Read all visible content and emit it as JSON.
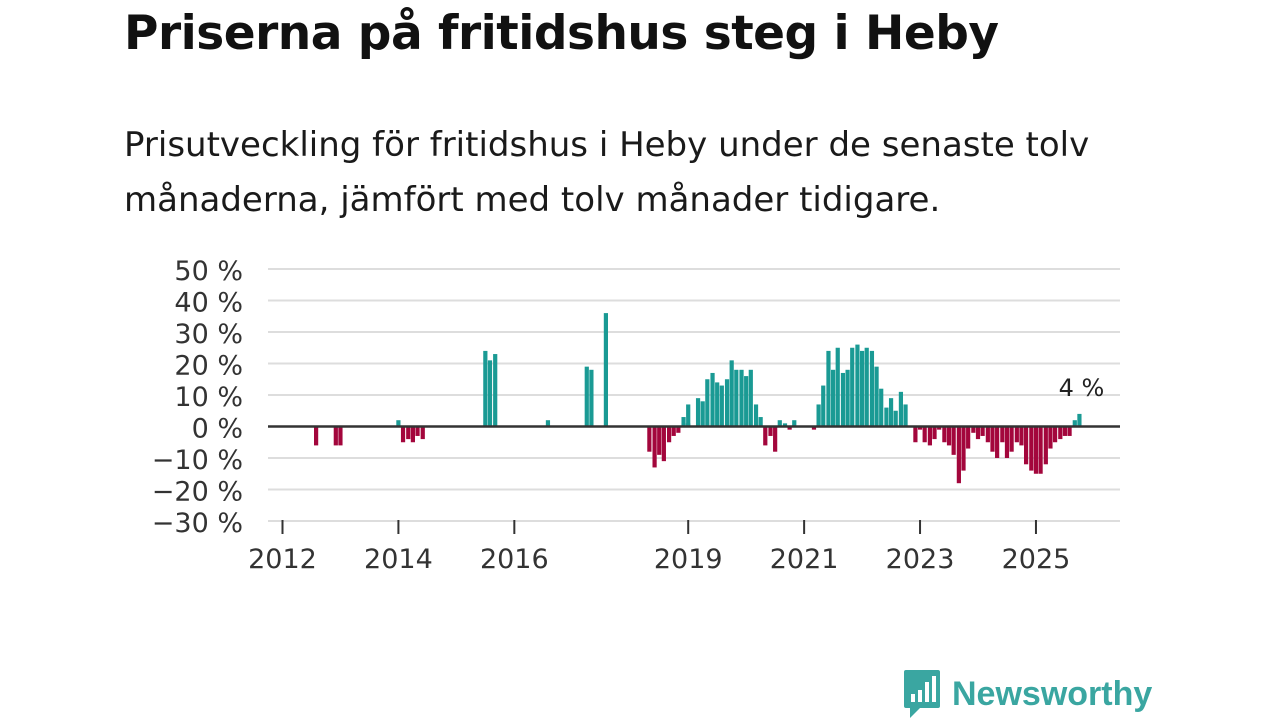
{
  "title": "Priserna på fritidshus steg i Heby",
  "subtitle": "Prisutveckling för fritidshus i Heby under de senaste tolv månaderna, jämfört med tolv månader tidigare.",
  "brand": "Newsworthy",
  "colors": {
    "positive": "#1a9a94",
    "negative": "#a3063c",
    "grid": "#dddddd",
    "zero": "#333333",
    "brand": "#3aa6a1"
  },
  "chart_data": {
    "type": "bar",
    "title": "Priserna på fritidshus steg i Heby",
    "ylabel": "",
    "xlabel": "",
    "ylim": [
      -30,
      50
    ],
    "yticks": [
      50,
      40,
      30,
      20,
      10,
      0,
      -10,
      -20,
      -30
    ],
    "ytick_labels": [
      "50 %",
      "40 %",
      "30 %",
      "20 %",
      "10 %",
      "0 %",
      "−10 %",
      "−20 %",
      "−30 %"
    ],
    "xticks": [
      2012,
      2014,
      2016,
      2019,
      2021,
      2023,
      2025
    ],
    "xtick_labels": [
      "2012",
      "2014",
      "2016",
      "2019",
      "2021",
      "2023",
      "2025"
    ],
    "xlim": [
      2011.75,
      2026.45
    ],
    "annotation": {
      "text": "4 %",
      "x": 2025.75,
      "value": 4
    },
    "series": [
      {
        "name": "Prisutveckling",
        "points": [
          [
            2012.58,
            -6
          ],
          [
            2012.92,
            -6
          ],
          [
            2013.0,
            -6
          ],
          [
            2014.0,
            2
          ],
          [
            2014.08,
            -5
          ],
          [
            2014.17,
            -4
          ],
          [
            2014.25,
            -5
          ],
          [
            2014.33,
            -3
          ],
          [
            2014.42,
            -4
          ],
          [
            2015.5,
            24
          ],
          [
            2015.58,
            21
          ],
          [
            2015.67,
            23
          ],
          [
            2016.58,
            2
          ],
          [
            2017.25,
            19
          ],
          [
            2017.33,
            18
          ],
          [
            2017.58,
            36
          ],
          [
            2018.92,
            3
          ],
          [
            2019.0,
            7
          ],
          [
            2018.33,
            -8
          ],
          [
            2018.42,
            -13
          ],
          [
            2018.5,
            -9
          ],
          [
            2018.58,
            -11
          ],
          [
            2018.67,
            -5
          ],
          [
            2018.75,
            -3
          ],
          [
            2018.83,
            -2
          ],
          [
            2018.92,
            1
          ],
          [
            2019.0,
            1
          ],
          [
            2019.17,
            9
          ],
          [
            2019.25,
            8
          ],
          [
            2019.33,
            15
          ],
          [
            2019.42,
            17
          ],
          [
            2019.5,
            14
          ],
          [
            2019.58,
            13
          ],
          [
            2019.67,
            15
          ],
          [
            2019.75,
            21
          ],
          [
            2019.83,
            18
          ],
          [
            2019.92,
            18
          ],
          [
            2020.0,
            16
          ],
          [
            2020.08,
            18
          ],
          [
            2020.17,
            7
          ],
          [
            2020.25,
            3
          ],
          [
            2020.33,
            -6
          ],
          [
            2020.42,
            -3
          ],
          [
            2020.5,
            -8
          ],
          [
            2020.58,
            2
          ],
          [
            2020.67,
            1
          ],
          [
            2020.75,
            -1
          ],
          [
            2020.83,
            2
          ],
          [
            2021.17,
            -1
          ],
          [
            2021.25,
            7
          ],
          [
            2021.33,
            13
          ],
          [
            2021.42,
            24
          ],
          [
            2021.5,
            18
          ],
          [
            2021.58,
            25
          ],
          [
            2021.67,
            17
          ],
          [
            2021.75,
            18
          ],
          [
            2021.83,
            25
          ],
          [
            2021.92,
            26
          ],
          [
            2022.0,
            24
          ],
          [
            2022.08,
            25
          ],
          [
            2022.17,
            24
          ],
          [
            2022.25,
            19
          ],
          [
            2022.33,
            12
          ],
          [
            2022.42,
            6
          ],
          [
            2022.5,
            9
          ],
          [
            2022.58,
            5
          ],
          [
            2022.67,
            11
          ],
          [
            2022.75,
            7
          ],
          [
            2022.92,
            -5
          ],
          [
            2023.0,
            -1
          ],
          [
            2023.08,
            -5
          ],
          [
            2023.17,
            -6
          ],
          [
            2023.25,
            -4
          ],
          [
            2023.33,
            -1
          ],
          [
            2023.42,
            -5
          ],
          [
            2023.5,
            -6
          ],
          [
            2023.58,
            -9
          ],
          [
            2023.67,
            -18
          ],
          [
            2023.75,
            -14
          ],
          [
            2023.83,
            -7
          ],
          [
            2023.92,
            -2
          ],
          [
            2024.0,
            -4
          ],
          [
            2024.08,
            -3
          ],
          [
            2024.17,
            -5
          ],
          [
            2024.25,
            -8
          ],
          [
            2024.33,
            -10
          ],
          [
            2024.42,
            -5
          ],
          [
            2024.5,
            -10
          ],
          [
            2024.58,
            -8
          ],
          [
            2024.67,
            -5
          ],
          [
            2024.75,
            -6
          ],
          [
            2024.83,
            -12
          ],
          [
            2024.92,
            -14
          ],
          [
            2025.0,
            -15
          ],
          [
            2025.08,
            -15
          ],
          [
            2025.17,
            -12
          ],
          [
            2025.25,
            -7
          ],
          [
            2025.33,
            -5
          ],
          [
            2025.42,
            -4
          ],
          [
            2025.5,
            -3
          ],
          [
            2025.58,
            -3
          ],
          [
            2025.67,
            2
          ],
          [
            2025.75,
            4
          ]
        ]
      }
    ]
  }
}
